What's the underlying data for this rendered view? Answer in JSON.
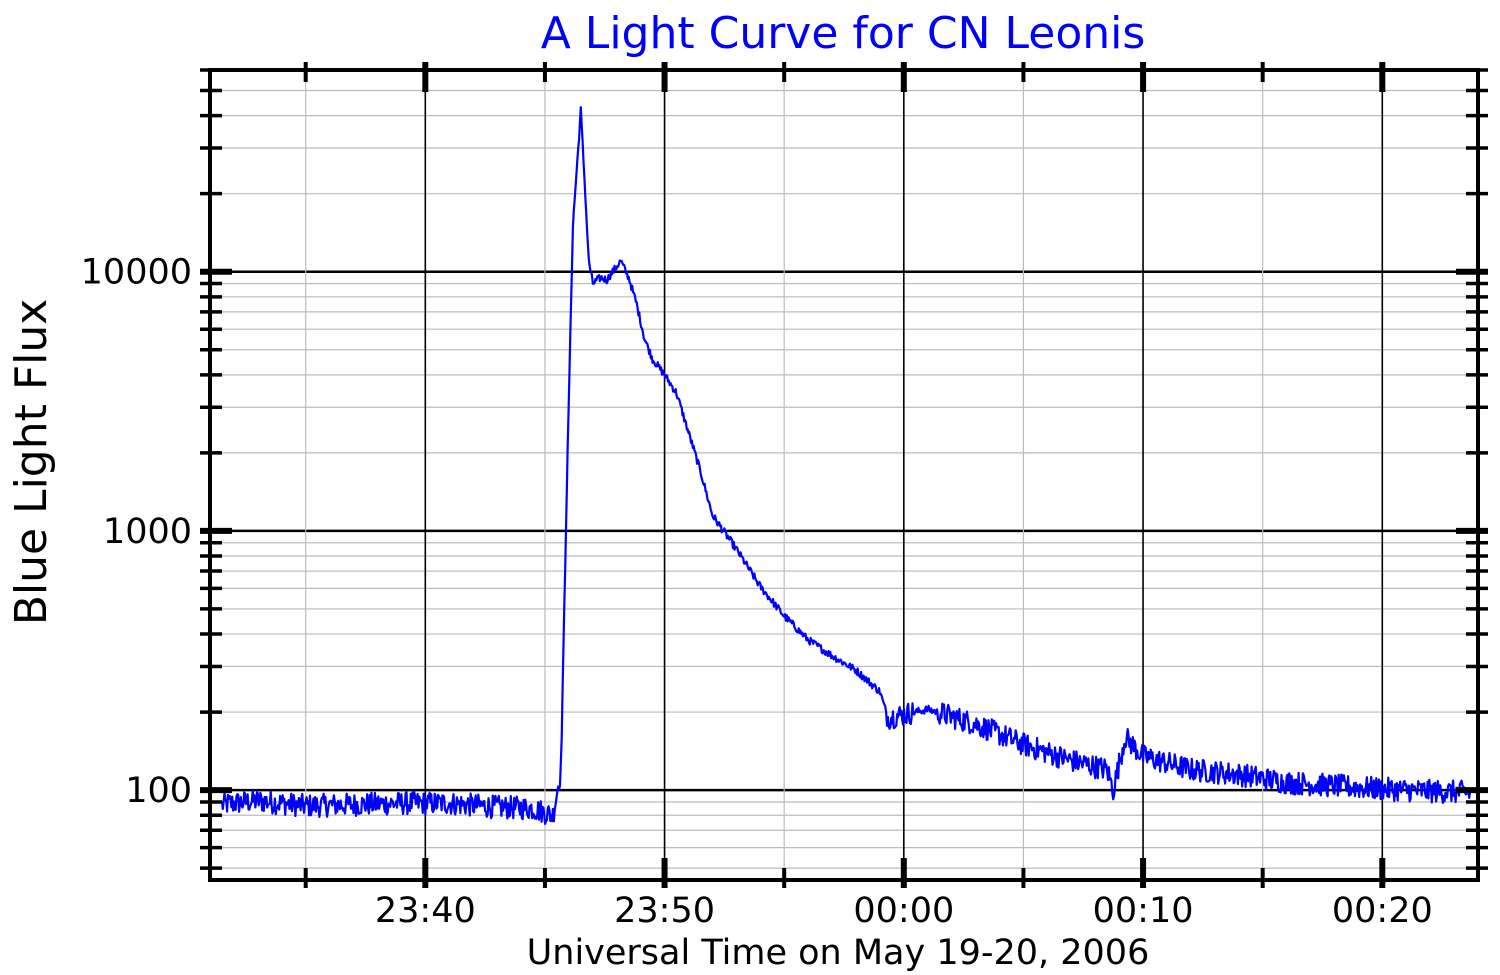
{
  "chart_data": {
    "type": "line",
    "title": "A Light Curve for CN Leonis",
    "xlabel": "Universal Time on May 19-20, 2006",
    "ylabel": "Blue Light Flux",
    "y_scale": "log",
    "grid": true,
    "x_ticks": [
      "23:40",
      "23:50",
      "00:00",
      "00:10",
      "00:20"
    ],
    "y_ticks": [
      "100",
      "1000",
      "10000"
    ],
    "xlim": [
      "23:31:00",
      "00:24:00"
    ],
    "ylim": [
      45,
      60000
    ],
    "colors": {
      "series": "#0000ff",
      "title": "#0000ff",
      "axes": "#000000",
      "grid_major": "#000000",
      "grid_minor": "#bbbbbb"
    },
    "series": [
      {
        "x": [
          "23:31:30",
          "23:33:00",
          "23:35:00",
          "23:37:00",
          "23:39:00",
          "23:41:00",
          "23:43:00",
          "23:44:30",
          "23:45:20",
          "23:45:40",
          "23:45:55",
          "23:46:10",
          "23:46:30",
          "23:46:50",
          "23:47:00",
          "23:47:20",
          "23:47:35",
          "23:47:50",
          "23:48:10",
          "23:48:30",
          "23:48:50",
          "23:49:10",
          "23:49:30",
          "23:50:00",
          "23:50:30",
          "23:51:00",
          "23:51:30",
          "23:52:00",
          "23:53:00",
          "23:54:00",
          "23:55:00",
          "23:56:00",
          "23:57:00",
          "23:58:00",
          "23:59:00",
          "23:59:20",
          "00:01:00",
          "00:03:00",
          "00:05:00",
          "00:07:00",
          "00:08:30",
          "00:08:45",
          "00:09:15",
          "00:10:00",
          "00:12:00",
          "00:14:00",
          "00:16:00",
          "00:18:00",
          "00:20:00",
          "00:22:00",
          "00:23:40"
        ],
        "y": [
          88,
          91,
          87,
          88,
          89,
          89,
          86,
          85,
          80,
          120,
          1500,
          15000,
          42000,
          11000,
          9000,
          9500,
          9300,
          10000,
          11000,
          9500,
          7500,
          5500,
          4600,
          4000,
          3400,
          2400,
          1700,
          1150,
          850,
          610,
          470,
          380,
          330,
          290,
          240,
          190,
          205,
          180,
          150,
          130,
          120,
          100,
          160,
          135,
          120,
          115,
          107,
          104,
          101,
          99,
          98
        ]
      }
    ]
  }
}
